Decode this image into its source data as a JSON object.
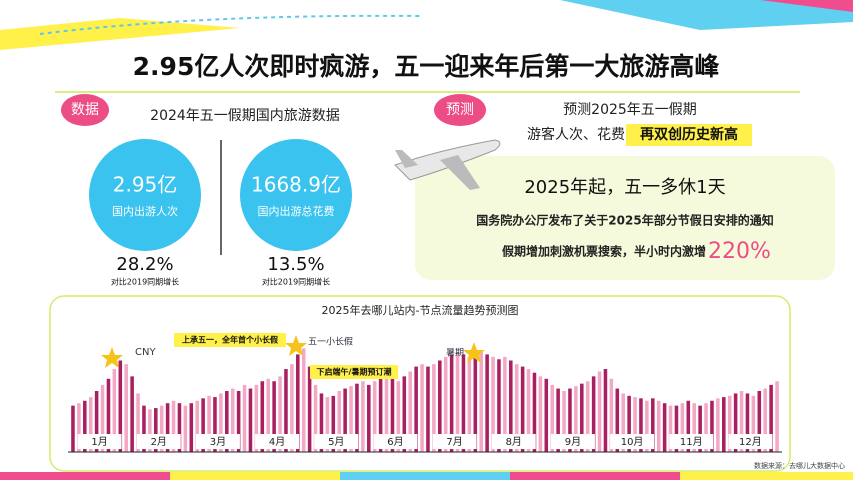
{
  "header": {
    "title": "2.95亿人次即时疯游，五一迎来年后第一大旅游高峰"
  },
  "stats": {
    "tag": "数据",
    "heading": "2024年五一假期国内旅游数据",
    "items": [
      {
        "value": "2.95亿",
        "label": "国内出游人次",
        "growth": "28.2%",
        "growth_label": "对比2019同期增长"
      },
      {
        "value": "1668.9亿",
        "label": "国内出游总花费",
        "growth": "13.5%",
        "growth_label": "对比2019同期增长"
      }
    ]
  },
  "forecast": {
    "tag": "预测",
    "line1": "预测2025年五一假期",
    "line2": "游客人次、花费",
    "highlight": "再双创历史新高",
    "headline": "2025年起，五一多休1天",
    "notice": "国务院办公厅发布了关于2025年部分节假日安排的通知",
    "search": "假期增加刺激机票搜索，半小时内激增",
    "surge": "220%"
  },
  "chart_data": {
    "type": "bar",
    "title": "2025年去哪儿站内-节点流量趋势预测图",
    "months": [
      "1月",
      "2月",
      "3月",
      "4月",
      "5月",
      "6月",
      "7月",
      "8月",
      "9月",
      "10月",
      "11月",
      "12月"
    ],
    "values": [
      38,
      40,
      42,
      45,
      50,
      55,
      60,
      68,
      75,
      72,
      62,
      48,
      38,
      35,
      36,
      38,
      40,
      42,
      40,
      38,
      40,
      42,
      44,
      46,
      45,
      48,
      50,
      52,
      50,
      55,
      52,
      55,
      58,
      60,
      58,
      62,
      68,
      72,
      80,
      85,
      70,
      55,
      48,
      45,
      46,
      50,
      52,
      54,
      56,
      58,
      55,
      58,
      60,
      62,
      60,
      58,
      62,
      66,
      70,
      72,
      70,
      72,
      75,
      78,
      80,
      82,
      80,
      78,
      80,
      82,
      80,
      78,
      76,
      78,
      75,
      72,
      70,
      68,
      65,
      62,
      60,
      55,
      52,
      50,
      52,
      54,
      56,
      58,
      62,
      66,
      68,
      60,
      52,
      48,
      46,
      45,
      44,
      42,
      44,
      42,
      40,
      38,
      38,
      40,
      42,
      40,
      38,
      40,
      42,
      44,
      45,
      46,
      48,
      50,
      48,
      46,
      50,
      52,
      55,
      58
    ],
    "bar_colors": [
      "#a8205f",
      "#f3a9c6"
    ],
    "ylim": [
      0,
      100
    ],
    "annotations": [
      "CNY",
      "上承五一，全年首个小长假",
      "五一小长假",
      "下启端午/暑期预订潮",
      "暑期"
    ],
    "source": "数据来源：去哪儿大数据中心"
  }
}
